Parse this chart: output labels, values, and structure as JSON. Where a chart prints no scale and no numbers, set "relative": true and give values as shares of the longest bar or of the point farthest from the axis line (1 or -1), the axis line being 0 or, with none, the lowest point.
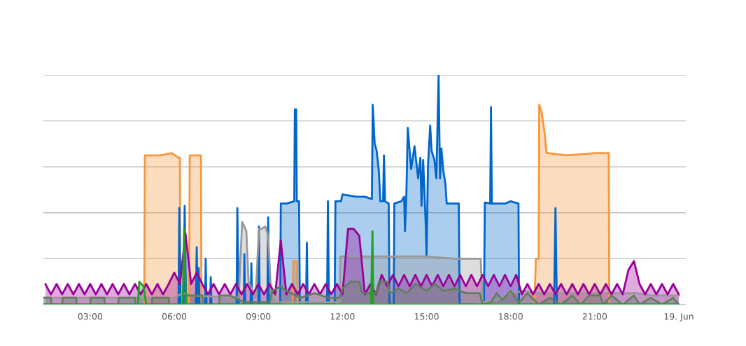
{
  "chart_data": {
    "type": "area",
    "relative": true,
    "grid": "y",
    "legend": false,
    "xlim": [
      1.33,
      24.25
    ],
    "xticks": [
      {
        "value": 3,
        "label": "03:00"
      },
      {
        "value": 6,
        "label": "06:00"
      },
      {
        "value": 9,
        "label": "09:00"
      },
      {
        "value": 12,
        "label": "12:00"
      },
      {
        "value": 15,
        "label": "15:00"
      },
      {
        "value": 18,
        "label": "18:00"
      },
      {
        "value": 21,
        "label": "21:00"
      },
      {
        "value": 24,
        "label": "19. Jun"
      }
    ],
    "series": [
      {
        "color": "#f7963c",
        "x": [
          1.33,
          4.93,
          4.95,
          5.5,
          5.9,
          6.15,
          6.2,
          6.22,
          6.53,
          6.55,
          6.95,
          6.97,
          6.99,
          10.22,
          10.25,
          10.38,
          10.4,
          18.85,
          18.9,
          18.97,
          19.0,
          19.02,
          19.1,
          19.2,
          19.28,
          19.35,
          20.0,
          21.0,
          21.5,
          21.52,
          24.0
        ],
        "values": [
          0,
          0,
          0.65,
          0.65,
          0.66,
          0.64,
          0.64,
          0,
          0,
          0.65,
          0.65,
          0,
          0,
          0,
          0.19,
          0.19,
          0,
          0,
          0.2,
          0.2,
          0.2,
          0.87,
          0.84,
          0.76,
          0.66,
          0.66,
          0.65,
          0.66,
          0.66,
          0,
          0
        ]
      },
      {
        "color": "#0066cc",
        "x": [
          1.33,
          6.15,
          6.18,
          6.22,
          6.33,
          6.37,
          6.42,
          6.77,
          6.8,
          6.83,
          6.85,
          6.87,
          6.9,
          7.1,
          7.12,
          7.15,
          7.28,
          7.3,
          7.33,
          8.22,
          8.25,
          8.3,
          8.48,
          8.5,
          8.53,
          8.72,
          8.75,
          8.78,
          9.0,
          9.02,
          9.05,
          9.32,
          9.35,
          9.38,
          9.78,
          9.8,
          10.0,
          10.28,
          10.3,
          10.35,
          10.37,
          10.45,
          10.48,
          10.7,
          10.73,
          10.76,
          11.45,
          11.48,
          11.52,
          11.72,
          11.75,
          11.95,
          12.0,
          12.5,
          12.8,
          13.05,
          13.08,
          13.15,
          13.22,
          13.3,
          13.35,
          13.45,
          13.48,
          13.52,
          13.65,
          13.68,
          13.83,
          13.85,
          14.1,
          14.2,
          14.23,
          14.28,
          14.33,
          14.45,
          14.57,
          14.7,
          14.78,
          14.82,
          14.88,
          14.97,
          15.0,
          15.05,
          15.13,
          15.18,
          15.28,
          15.35,
          15.43,
          15.48,
          15.53,
          15.6,
          15.67,
          15.72,
          16.15,
          16.18,
          17.05,
          17.08,
          17.27,
          17.3,
          17.33,
          17.8,
          18.0,
          18.28,
          18.3,
          19.55,
          19.6,
          19.65,
          24.0
        ],
        "values": [
          0,
          0,
          0.42,
          0,
          0,
          0.43,
          0,
          0,
          0.25,
          0,
          0,
          0.16,
          0,
          0,
          0.2,
          0,
          0,
          0.12,
          0,
          0,
          0.42,
          0,
          0,
          0.22,
          0,
          0,
          0.18,
          0,
          0,
          0.34,
          0,
          0,
          0.38,
          0,
          0,
          0.44,
          0.44,
          0.45,
          0.85,
          0.85,
          0.45,
          0.45,
          0,
          0,
          0.27,
          0,
          0,
          0.45,
          0,
          0,
          0.45,
          0.45,
          0.48,
          0.47,
          0.47,
          0.46,
          0.87,
          0.7,
          0.67,
          0.58,
          0.45,
          0.45,
          0.65,
          0.45,
          0.44,
          0,
          0,
          0.44,
          0.45,
          0.47,
          0.32,
          0.48,
          0.77,
          0.59,
          0.69,
          0.55,
          0.64,
          0.43,
          0.63,
          0.35,
          0.21,
          0.6,
          0.78,
          0.67,
          0.63,
          0.55,
          1.0,
          0.55,
          0.68,
          0.58,
          0.53,
          0.44,
          0.44,
          0,
          0,
          0.445,
          0.44,
          0.86,
          0.44,
          0.44,
          0.45,
          0.44,
          0,
          0,
          0.42,
          0,
          0
        ]
      },
      {
        "color": "#999999",
        "x": [
          1.33,
          6.0,
          6.3,
          6.6,
          8.3,
          8.42,
          8.5,
          8.57,
          8.65,
          8.9,
          9.02,
          9.1,
          9.25,
          9.35,
          9.45,
          9.6,
          11.9,
          11.93,
          14.0,
          15.0,
          16.0,
          16.93,
          17.0,
          17.5,
          18.0,
          18.5,
          19.0,
          22.5,
          23.0,
          24.0
        ],
        "values": [
          0.03,
          0.03,
          0.05,
          0.04,
          0.03,
          0.36,
          0.34,
          0.32,
          0.1,
          0.03,
          0.33,
          0.33,
          0.34,
          0.3,
          0.05,
          0.01,
          0.01,
          0.21,
          0.21,
          0.21,
          0.2,
          0.2,
          0.01,
          0.02,
          0.05,
          0.06,
          0.05,
          0.05,
          0.04,
          0.04
        ]
      },
      {
        "color": "#990099",
        "x": [
          1.4,
          1.6,
          1.8,
          2.0,
          2.2,
          2.4,
          2.6,
          2.8,
          3.0,
          3.2,
          3.4,
          3.6,
          3.8,
          4.0,
          4.2,
          4.4,
          4.6,
          4.8,
          5.0,
          5.2,
          5.4,
          5.6,
          5.8,
          6.0,
          6.2,
          6.4,
          6.6,
          6.8,
          7.0,
          7.2,
          7.4,
          7.6,
          7.8,
          8.0,
          8.2,
          8.4,
          8.6,
          8.8,
          9.0,
          9.2,
          9.4,
          9.6,
          9.8,
          10.0,
          10.2,
          10.4,
          10.6,
          10.8,
          11.0,
          11.2,
          11.4,
          11.6,
          11.8,
          12.0,
          12.2,
          12.4,
          12.6,
          12.8,
          13.0,
          13.2,
          13.4,
          13.6,
          13.8,
          14.0,
          14.2,
          14.4,
          14.6,
          14.8,
          15.0,
          15.2,
          15.4,
          15.6,
          15.8,
          16.0,
          16.2,
          16.4,
          16.6,
          16.8,
          17.0,
          17.2,
          17.4,
          17.6,
          17.8,
          18.0,
          18.2,
          18.4,
          18.6,
          18.8,
          19.0,
          19.2,
          19.4,
          19.6,
          19.8,
          20.0,
          20.2,
          20.4,
          20.6,
          20.8,
          21.0,
          21.2,
          21.4,
          21.6,
          21.8,
          22.0,
          22.2,
          22.4,
          22.6,
          22.8,
          23.0,
          23.2,
          23.4,
          23.6,
          23.8,
          24.0
        ],
        "values": [
          0.09,
          0.045,
          0.09,
          0.045,
          0.09,
          0.045,
          0.09,
          0.045,
          0.09,
          0.045,
          0.09,
          0.045,
          0.09,
          0.045,
          0.09,
          0.045,
          0.09,
          0.045,
          0.09,
          0.045,
          0.09,
          0.045,
          0.09,
          0.14,
          0.09,
          0.31,
          0.09,
          0.14,
          0.09,
          0.045,
          0.09,
          0.045,
          0.09,
          0.045,
          0.09,
          0.045,
          0.09,
          0.045,
          0.09,
          0.045,
          0.09,
          0.045,
          0.28,
          0.045,
          0.09,
          0.045,
          0.09,
          0.045,
          0.09,
          0.045,
          0.09,
          0.045,
          0.09,
          0.045,
          0.33,
          0.33,
          0.3,
          0.045,
          0.09,
          0.045,
          0.13,
          0.08,
          0.13,
          0.08,
          0.13,
          0.08,
          0.13,
          0.08,
          0.13,
          0.08,
          0.13,
          0.08,
          0.13,
          0.08,
          0.13,
          0.08,
          0.13,
          0.08,
          0.13,
          0.08,
          0.13,
          0.08,
          0.13,
          0.08,
          0.13,
          0.045,
          0.09,
          0.045,
          0.09,
          0.045,
          0.09,
          0.045,
          0.09,
          0.045,
          0.09,
          0.045,
          0.09,
          0.045,
          0.09,
          0.045,
          0.09,
          0.045,
          0.09,
          0.045,
          0.15,
          0.19,
          0.09,
          0.045,
          0.09,
          0.045,
          0.09,
          0.045,
          0.09,
          0.045
        ]
      },
      {
        "color": "#5f7f5f",
        "x": [
          1.33,
          1.6,
          1.62,
          2.0,
          2.02,
          2.5,
          2.52,
          3.0,
          3.02,
          3.5,
          3.52,
          4.0,
          4.02,
          4.6,
          4.62,
          5.2,
          5.22,
          5.8,
          5.82,
          6.4,
          6.42,
          7.0,
          7.02,
          7.6,
          7.62,
          8.0,
          8.5,
          9.4,
          9.5,
          9.8,
          10.0,
          10.5,
          11.0,
          11.5,
          11.9,
          12.0,
          12.3,
          12.6,
          12.7,
          13.2,
          13.3,
          13.6,
          13.7,
          14.0,
          14.3,
          14.6,
          15.0,
          15.3,
          15.6,
          16.0,
          16.4,
          16.9,
          17.0,
          17.3,
          17.5,
          17.7,
          18.0,
          18.3,
          18.6,
          19.0,
          19.4,
          19.8,
          20.2,
          20.5,
          20.8,
          21.2,
          21.3,
          21.6,
          22.0,
          22.4,
          22.6,
          23.0,
          23.4,
          23.8,
          24.0
        ],
        "values": [
          0.03,
          0.03,
          0,
          0,
          0.03,
          0.03,
          0,
          0,
          0.03,
          0.03,
          0,
          0,
          0.03,
          0.03,
          0,
          0,
          0.03,
          0.03,
          0,
          0,
          0.04,
          0.04,
          0,
          0,
          0.04,
          0.04,
          0.01,
          0.01,
          0.06,
          0.08,
          0.06,
          0.03,
          0.05,
          0.03,
          0.03,
          0.07,
          0.1,
          0.1,
          0.05,
          0.05,
          0.1,
          0.1,
          0.05,
          0.07,
          0.05,
          0.09,
          0.06,
          0.09,
          0.06,
          0.07,
          0.05,
          0.05,
          0,
          0.01,
          0.05,
          0.02,
          0.06,
          0.01,
          0.05,
          0,
          0.03,
          0,
          0.04,
          0,
          0.04,
          0.04,
          0,
          0.04,
          0,
          0.04,
          0,
          0.03,
          0,
          0.03,
          0
        ]
      },
      {
        "color": "#22a022",
        "x": [
          1.33,
          4.7,
          4.75,
          4.9,
          5.0,
          6.3,
          6.35,
          6.42,
          13.02,
          13.07,
          13.1,
          24.0
        ],
        "values": [
          0,
          0,
          0.1,
          0.08,
          0,
          0,
          0.33,
          0,
          0,
          0.32,
          0,
          0
        ]
      }
    ]
  }
}
